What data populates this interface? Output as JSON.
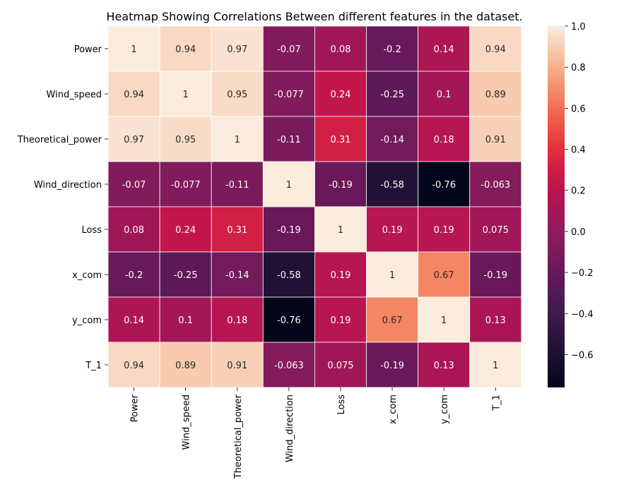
{
  "chart_data": {
    "type": "heatmap",
    "title": "Heatmap Showing Correlations Between different features in the dataset.",
    "row_labels": [
      "Power",
      "Wind_speed",
      "Theoretical_power",
      "Wind_direction",
      "Loss",
      "x_com",
      "y_com",
      "T_1"
    ],
    "col_labels": [
      "Power",
      "Wind_speed",
      "Theoretical_power",
      "Wind_direction",
      "Loss",
      "x_com",
      "y_com",
      "T_1"
    ],
    "values": [
      [
        1,
        0.94,
        0.97,
        -0.07,
        0.08,
        -0.2,
        0.14,
        0.94
      ],
      [
        0.94,
        1,
        0.95,
        -0.077,
        0.24,
        -0.25,
        0.1,
        0.89
      ],
      [
        0.97,
        0.95,
        1,
        -0.11,
        0.31,
        -0.14,
        0.18,
        0.91
      ],
      [
        -0.07,
        -0.077,
        -0.11,
        1,
        -0.19,
        -0.58,
        -0.76,
        -0.063
      ],
      [
        0.08,
        0.24,
        0.31,
        -0.19,
        1,
        0.19,
        0.19,
        0.075
      ],
      [
        -0.2,
        -0.25,
        -0.14,
        -0.58,
        0.19,
        1,
        0.67,
        -0.19
      ],
      [
        0.14,
        0.1,
        0.18,
        -0.76,
        0.19,
        0.67,
        1,
        0.13
      ],
      [
        0.94,
        0.89,
        0.91,
        -0.063,
        0.075,
        -0.19,
        0.13,
        1
      ]
    ],
    "value_labels": [
      [
        "1",
        "0.94",
        "0.97",
        "-0.07",
        "0.08",
        "-0.2",
        "0.14",
        "0.94"
      ],
      [
        "0.94",
        "1",
        "0.95",
        "-0.077",
        "0.24",
        "-0.25",
        "0.1",
        "0.89"
      ],
      [
        "0.97",
        "0.95",
        "1",
        "-0.11",
        "0.31",
        "-0.14",
        "0.18",
        "0.91"
      ],
      [
        "-0.07",
        "-0.077",
        "-0.11",
        "1",
        "-0.19",
        "-0.58",
        "-0.76",
        "-0.063"
      ],
      [
        "0.08",
        "0.24",
        "0.31",
        "-0.19",
        "1",
        "0.19",
        "0.19",
        "0.075"
      ],
      [
        "-0.2",
        "-0.25",
        "-0.14",
        "-0.58",
        "0.19",
        "1",
        "0.67",
        "-0.19"
      ],
      [
        "0.14",
        "0.1",
        "0.18",
        "-0.76",
        "0.19",
        "0.67",
        "1",
        "0.13"
      ],
      [
        "0.94",
        "0.89",
        "0.91",
        "-0.063",
        "0.075",
        "-0.19",
        "0.13",
        "1"
      ]
    ],
    "colormap": "rocket",
    "colorbar": {
      "range": [
        -0.76,
        1.0
      ],
      "ticks": [
        1.0,
        0.8,
        0.6,
        0.4,
        0.2,
        0.0,
        -0.2,
        -0.4,
        -0.6
      ],
      "tick_labels": [
        "1.0",
        "0.8",
        "0.6",
        "0.4",
        "0.2",
        "0.0",
        "−0.2",
        "−0.4",
        "−0.6"
      ]
    },
    "annotations": true,
    "grid": false,
    "legend": "colorbar-right"
  }
}
